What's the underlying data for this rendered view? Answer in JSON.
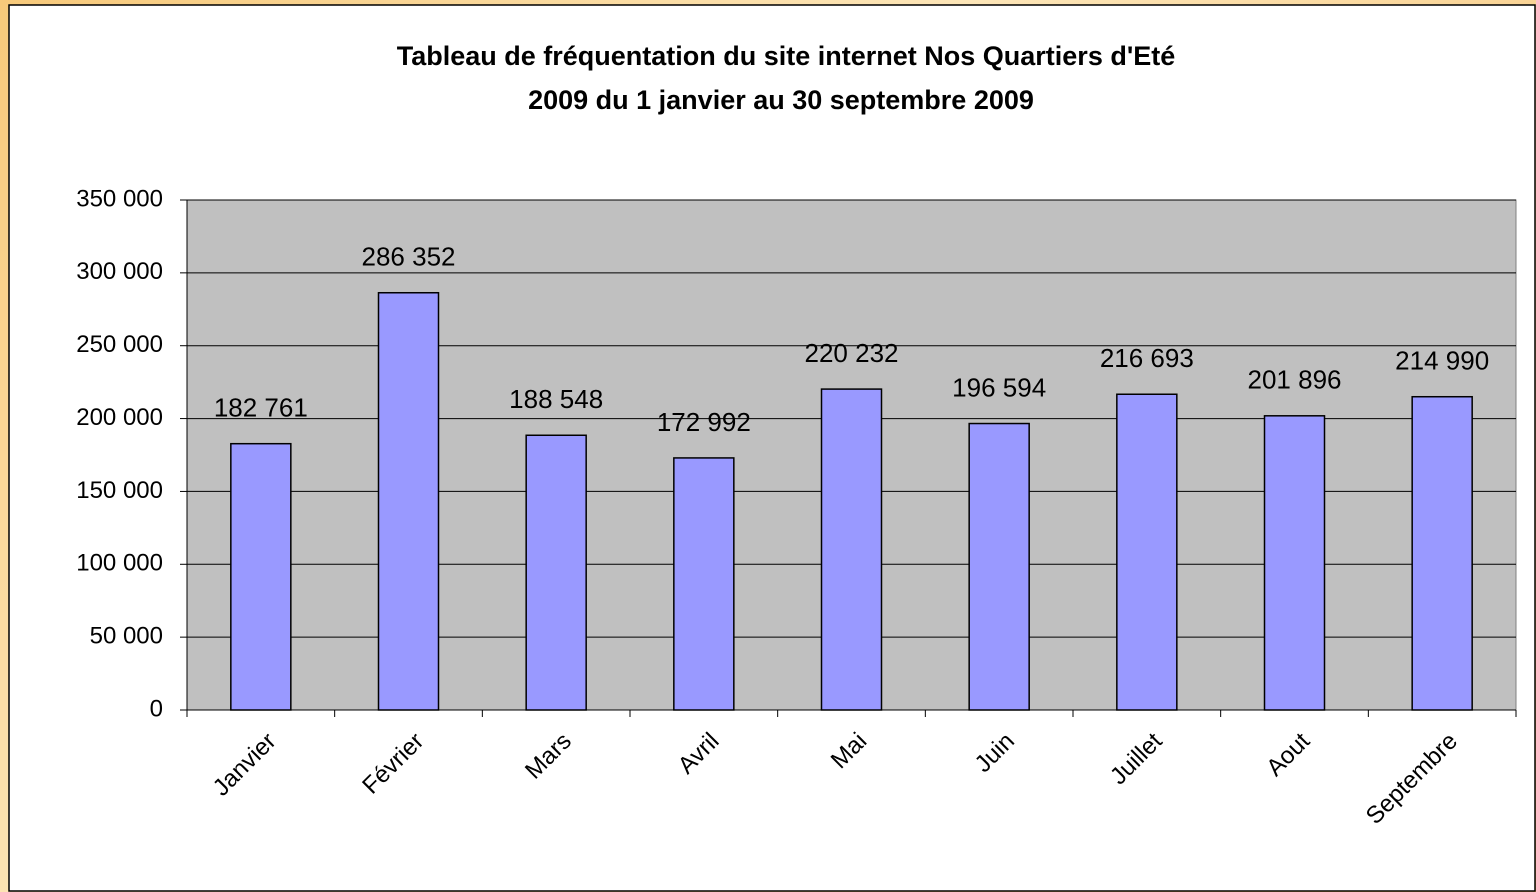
{
  "chart_data": {
    "type": "bar",
    "title": [
      "Tableau de fréquentation du site internet Nos Quartiers d'Eté",
      "2009 du 1 janvier au 30 septembre 2009"
    ],
    "categories": [
      "Janvier",
      "Février",
      "Mars",
      "Avril",
      "Mai",
      "Juin",
      "Juillet",
      "Aout",
      "Septembre"
    ],
    "values": [
      182761,
      286352,
      188548,
      172992,
      220232,
      196594,
      216693,
      201896,
      214990
    ],
    "value_labels": [
      "182 761",
      "286 352",
      "188 548",
      "172 992",
      "220 232",
      "196 594",
      "216 693",
      "201 896",
      "214 990"
    ],
    "color": "#9999ff",
    "ylim": [
      0,
      350000
    ],
    "yticks": [
      0,
      {
        "value": 50000,
        "label": "50 000"
      },
      {
        "value": 100000,
        "label": "100 000"
      },
      {
        "value": 150000,
        "label": "150 000"
      },
      {
        "value": 200000,
        "label": "200 000"
      },
      {
        "value": 250000,
        "label": "250 000"
      },
      {
        "value": 300000,
        "label": "300 000"
      },
      {
        "value": 350000,
        "label": "350 000"
      }
    ],
    "grid": true
  }
}
